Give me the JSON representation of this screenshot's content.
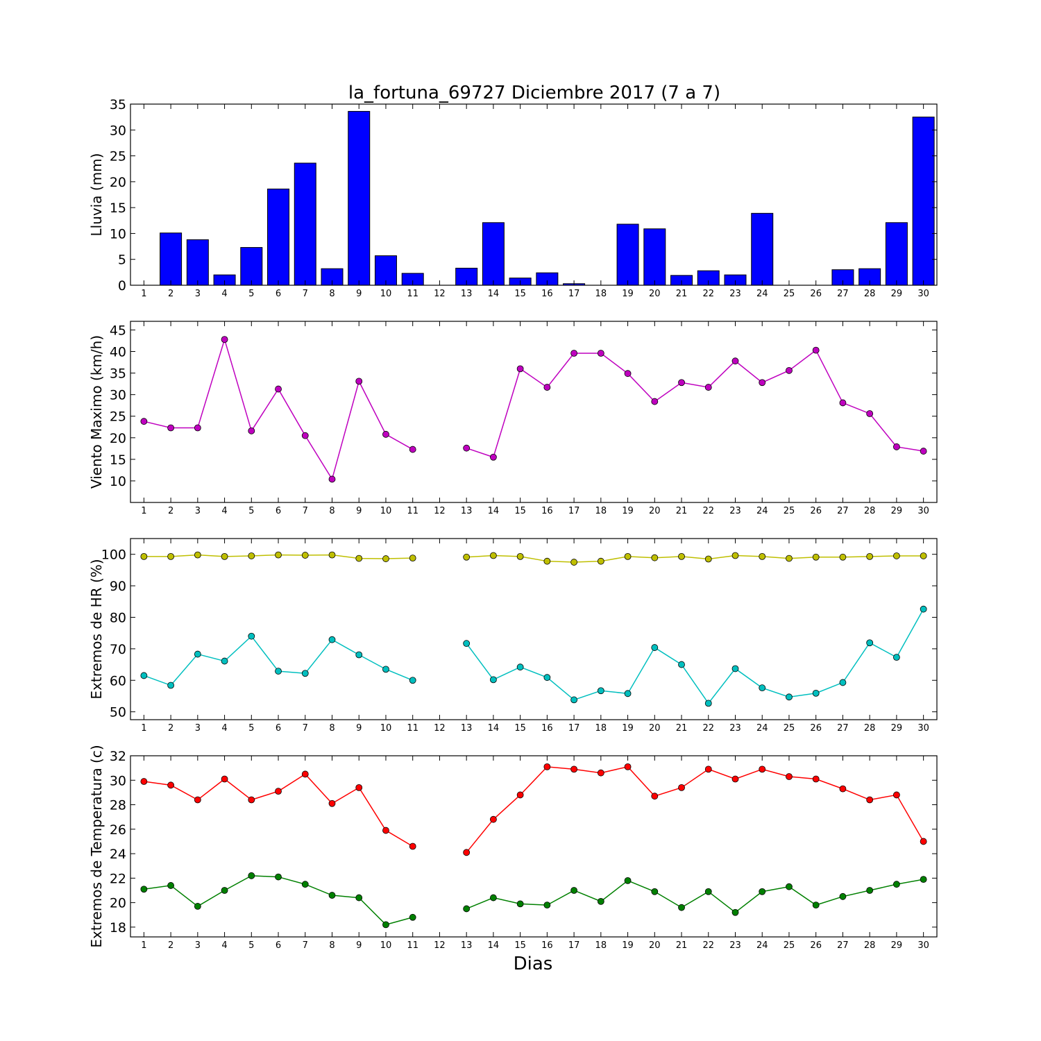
{
  "title": "la_fortuna_69727 Diciembre 2017  (7 a 7)",
  "xlabel": "Dias",
  "colors": {
    "rain": "#0000ff",
    "wind": "#bf00bf",
    "hr_max": "#bfbf00",
    "hr_min": "#00bfbf",
    "temp_max": "#ff0000",
    "temp_min": "#008000"
  },
  "chart_data": [
    {
      "type": "bar",
      "ylabel": "Lluvia (mm)",
      "ylim": [
        0,
        35
      ],
      "yticks": [
        0,
        5,
        10,
        15,
        20,
        25,
        30,
        35
      ],
      "categories": [
        1,
        2,
        3,
        4,
        5,
        6,
        7,
        8,
        9,
        10,
        11,
        12,
        13,
        14,
        15,
        16,
        17,
        18,
        19,
        20,
        21,
        22,
        23,
        24,
        25,
        26,
        27,
        28,
        29,
        30
      ],
      "series": [
        {
          "values": [
            0,
            10.1,
            8.8,
            2.0,
            7.3,
            18.6,
            23.6,
            3.2,
            33.6,
            5.7,
            2.3,
            0,
            3.3,
            12.1,
            1.4,
            2.4,
            0.3,
            0,
            11.8,
            10.9,
            1.9,
            2.8,
            2.0,
            13.9,
            0,
            0,
            3.0,
            3.2,
            12.1,
            32.5
          ]
        }
      ]
    },
    {
      "type": "line",
      "ylabel": "Viento Maximo (km/h)",
      "ylim": [
        5,
        47
      ],
      "yticks": [
        10,
        15,
        20,
        25,
        30,
        35,
        40,
        45
      ],
      "x": [
        1,
        2,
        3,
        4,
        5,
        6,
        7,
        8,
        9,
        10,
        11,
        12,
        13,
        14,
        15,
        16,
        17,
        18,
        19,
        20,
        21,
        22,
        23,
        24,
        25,
        26,
        27,
        28,
        29,
        30
      ],
      "series": [
        {
          "values": [
            23.8,
            22.3,
            22.3,
            42.8,
            21.6,
            31.3,
            20.5,
            10.4,
            33.1,
            20.8,
            17.3,
            null,
            17.6,
            15.5,
            36.0,
            31.7,
            39.6,
            39.6,
            34.9,
            28.4,
            32.8,
            31.7,
            37.8,
            32.8,
            35.6,
            40.3,
            28.1,
            25.6,
            17.9,
            16.9
          ]
        }
      ]
    },
    {
      "type": "line",
      "ylabel": "Extremos de HR (%)",
      "ylim": [
        47.5,
        105
      ],
      "yticks": [
        50,
        60,
        70,
        80,
        90,
        100
      ],
      "x": [
        1,
        2,
        3,
        4,
        5,
        6,
        7,
        8,
        9,
        10,
        11,
        12,
        13,
        14,
        15,
        16,
        17,
        18,
        19,
        20,
        21,
        22,
        23,
        24,
        25,
        26,
        27,
        28,
        29,
        30
      ],
      "series": [
        {
          "values": [
            99.3,
            99.3,
            99.8,
            99.3,
            99.5,
            99.8,
            99.7,
            99.8,
            98.7,
            98.6,
            98.8,
            null,
            99.1,
            99.6,
            99.3,
            97.8,
            97.5,
            97.8,
            99.3,
            98.9,
            99.3,
            98.5,
            99.6,
            99.3,
            98.7,
            99.1,
            99.1,
            99.3,
            99.5,
            99.5
          ]
        },
        {
          "values": [
            61.5,
            58.4,
            68.3,
            66.1,
            74.0,
            62.9,
            62.2,
            72.9,
            68.1,
            63.5,
            60.0,
            null,
            71.7,
            60.2,
            64.2,
            60.9,
            53.8,
            56.7,
            55.8,
            70.4,
            65.0,
            52.7,
            63.7,
            57.6,
            54.7,
            55.9,
            59.3,
            71.9,
            67.3,
            82.6
          ]
        }
      ]
    },
    {
      "type": "line",
      "ylabel": "Extremos de Temperatura (c)",
      "ylim": [
        17.2,
        32
      ],
      "yticks": [
        18,
        20,
        22,
        24,
        26,
        28,
        30,
        32
      ],
      "x": [
        1,
        2,
        3,
        4,
        5,
        6,
        7,
        8,
        9,
        10,
        11,
        12,
        13,
        14,
        15,
        16,
        17,
        18,
        19,
        20,
        21,
        22,
        23,
        24,
        25,
        26,
        27,
        28,
        29,
        30
      ],
      "series": [
        {
          "values": [
            29.9,
            29.6,
            28.4,
            30.1,
            28.4,
            29.1,
            30.5,
            28.1,
            29.4,
            25.9,
            24.6,
            null,
            24.1,
            26.8,
            28.8,
            31.1,
            30.9,
            30.6,
            31.1,
            28.7,
            29.4,
            30.9,
            30.1,
            30.9,
            30.3,
            30.1,
            29.3,
            28.4,
            28.8,
            25.0
          ]
        },
        {
          "values": [
            21.1,
            21.4,
            19.7,
            21.0,
            22.2,
            22.1,
            21.5,
            20.6,
            20.4,
            18.2,
            18.8,
            null,
            19.5,
            20.4,
            19.9,
            19.8,
            21.0,
            20.1,
            21.8,
            20.9,
            19.6,
            20.9,
            19.2,
            20.9,
            21.3,
            19.8,
            20.5,
            21.0,
            21.5,
            21.9
          ]
        }
      ]
    }
  ]
}
